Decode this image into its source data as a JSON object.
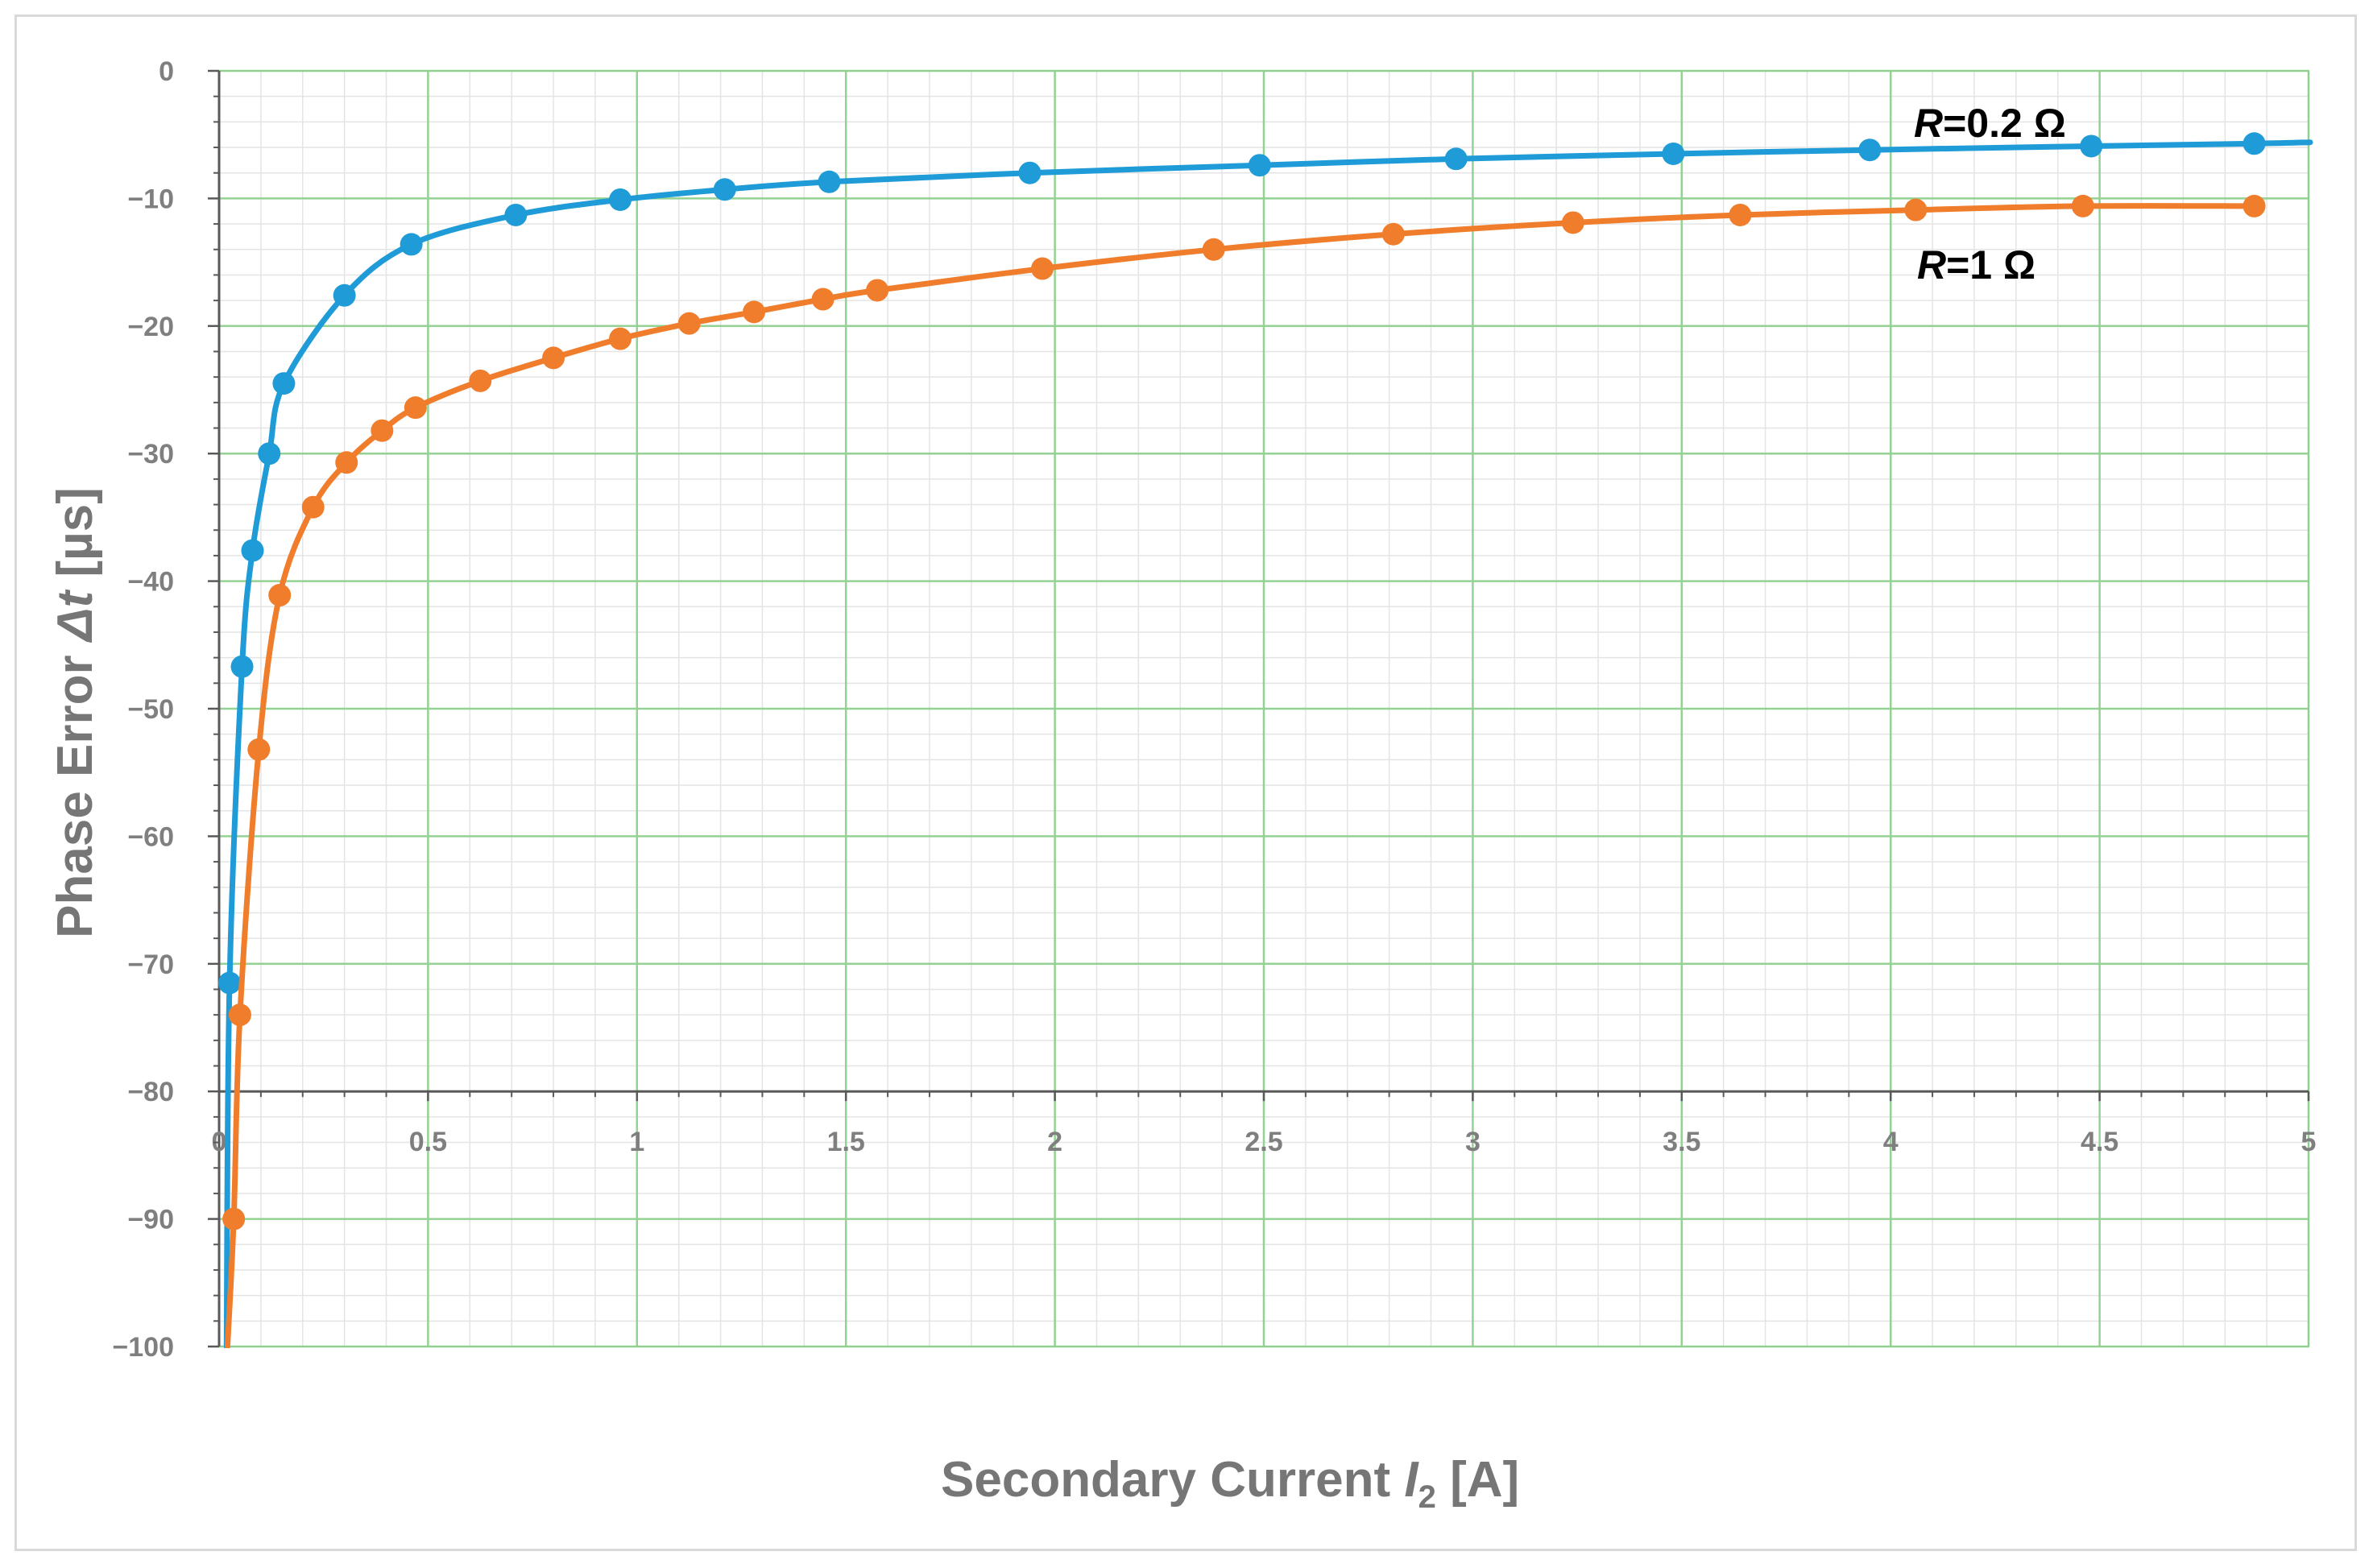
{
  "chart_data": {
    "type": "line",
    "xlabel": {
      "prefix": "Secondary Current ",
      "var": "I",
      "sub": "2",
      "unit": "  [A]"
    },
    "ylabel": {
      "prefix": "Phase Error ",
      "var": "Δt",
      "unit": "  [µs]"
    },
    "xlim": [
      0,
      5
    ],
    "ylim": [
      -100,
      0
    ],
    "x_ticks": [
      "0",
      "0.5",
      "1",
      "1.5",
      "2",
      "2.5",
      "3",
      "3.5",
      "4",
      "4.5",
      "5"
    ],
    "y_ticks": [
      "0",
      "-10",
      "-20",
      "-30",
      "-40",
      "-50",
      "-60",
      "-70",
      "-80",
      "-90",
      "-100"
    ],
    "grid": true,
    "series": [
      {
        "name": "R=0.2 Ω",
        "label_var": "R",
        "label_rest": "=0.2 Ω",
        "color": "#1f9bd7",
        "x": [
          0.025,
          0.055,
          0.08,
          0.12,
          0.155,
          0.3,
          0.46,
          0.71,
          0.96,
          1.21,
          1.46,
          1.94,
          2.49,
          2.96,
          3.48,
          3.95,
          4.48,
          4.87
        ],
        "y": [
          -71.5,
          -46.7,
          -37.6,
          -30.0,
          -24.5,
          -17.6,
          -13.6,
          -11.3,
          -10.1,
          -9.3,
          -8.7,
          -8.0,
          -7.4,
          -6.9,
          -6.5,
          -6.2,
          -5.9,
          -5.7
        ]
      },
      {
        "name": "R=1 Ω",
        "label_var": "R",
        "label_rest": "=1 Ω",
        "color": "#f07d2b",
        "x": [
          0.035,
          0.05,
          0.095,
          0.145,
          0.225,
          0.305,
          0.39,
          0.47,
          0.625,
          0.8,
          0.96,
          1.125,
          1.28,
          1.445,
          1.575,
          1.97,
          2.38,
          2.81,
          3.24,
          3.64,
          4.06,
          4.46,
          4.87
        ],
        "y": [
          -90.0,
          -74.0,
          -53.2,
          -41.1,
          -34.2,
          -30.7,
          -28.2,
          -26.4,
          -24.3,
          -22.5,
          -21.0,
          -19.8,
          -18.9,
          -17.9,
          -17.2,
          -15.5,
          -14.0,
          -12.8,
          -11.9,
          -11.3,
          -10.9,
          -10.6,
          -10.6
        ]
      }
    ]
  }
}
